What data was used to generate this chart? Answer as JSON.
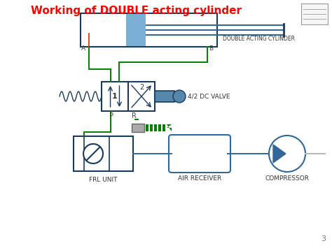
{
  "title": "Working of DOUBLE acting cylinder",
  "title_color": "#FF0000",
  "bg_color": "#FFFFFF",
  "gc": "#008000",
  "bc": "#336699",
  "dc": "#1a3a5c",
  "label_cylinder": "DOUBLE ACTING CYLINDER",
  "label_valve": "4/2 DC VALVE",
  "label_frl": "FRL UNIT",
  "label_receiver": "AIR RECEIVER",
  "label_compressor": "COMPRESSOR",
  "page_num": "3",
  "label_P": "P",
  "label_R": "R",
  "label_A": "A",
  "label_B": "B",
  "label_1": "1",
  "label_2": "2",
  "piston_color": "#7BAFD4",
  "solenoid_color": "#5588AA"
}
